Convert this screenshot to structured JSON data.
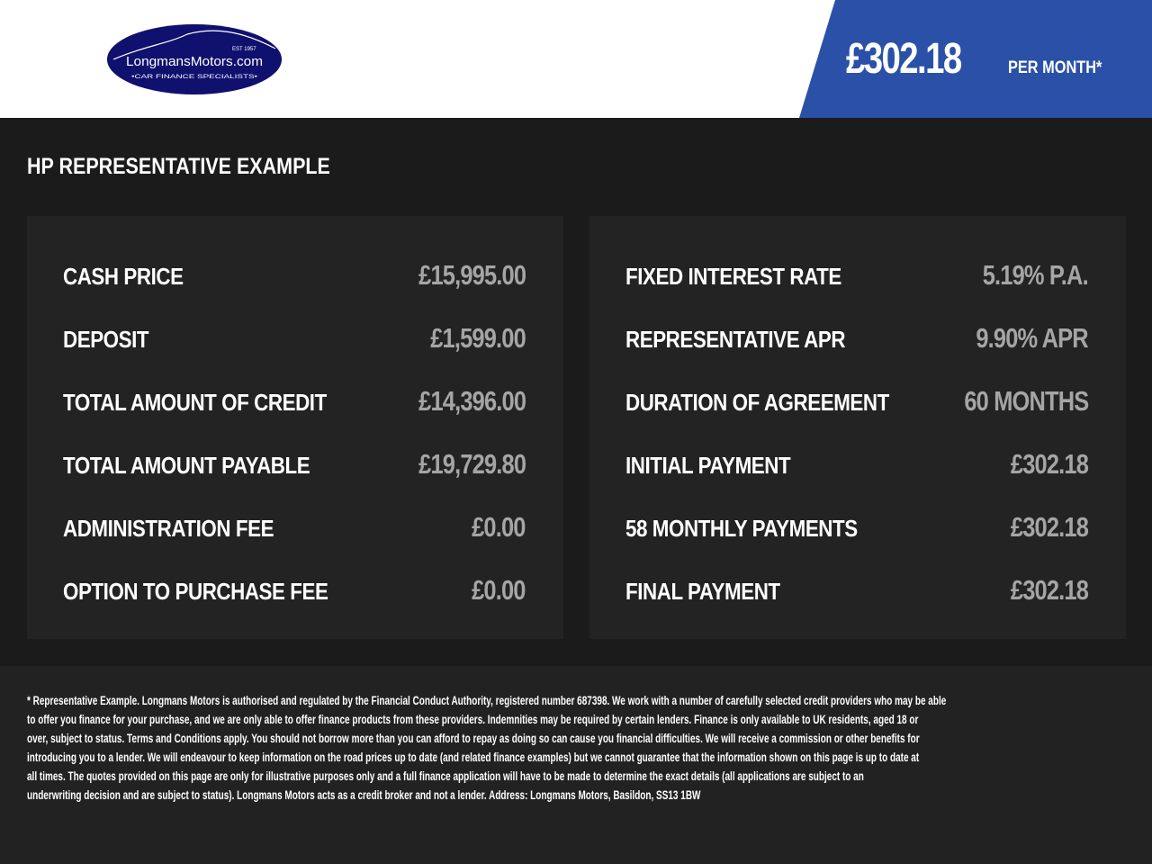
{
  "header": {
    "logo": {
      "name": "LongmansMotors.com",
      "est": "EST 1957",
      "tagline": "•CAR FINANCE SPECIALISTS•"
    },
    "price": "£302.18",
    "price_suffix": "PER MONTH*",
    "accent_color": "#2a50a8"
  },
  "section_title": "HP REPRESENTATIVE EXAMPLE",
  "left_panel": [
    {
      "label": "CASH PRICE",
      "value": "£15,995.00"
    },
    {
      "label": "DEPOSIT",
      "value": "£1,599.00"
    },
    {
      "label": "TOTAL AMOUNT OF CREDIT",
      "value": "£14,396.00"
    },
    {
      "label": "TOTAL AMOUNT PAYABLE",
      "value": "£19,729.80"
    },
    {
      "label": "ADMINISTRATION FEE",
      "value": "£0.00"
    },
    {
      "label": "OPTION TO PURCHASE FEE",
      "value": "£0.00"
    }
  ],
  "right_panel": [
    {
      "label": "FIXED INTEREST RATE",
      "value": "5.19% P.A."
    },
    {
      "label": "REPRESENTATIVE APR",
      "value": "9.90% APR"
    },
    {
      "label": "DURATION OF AGREEMENT",
      "value": "60 MONTHS"
    },
    {
      "label": "INITIAL PAYMENT",
      "value": "£302.18"
    },
    {
      "label": "58 MONTHLY PAYMENTS",
      "value": "£302.18"
    },
    {
      "label": "FINAL PAYMENT",
      "value": "£302.18"
    }
  ],
  "disclaimer_lines": [
    "* Representative Example. Longmans Motors is authorised and regulated by the Financial Conduct Authority, registered number 687398. We work with a number of carefully selected credit providers who may be able",
    "to offer you finance for your purchase, and we are only able to offer finance products from these providers. Indemnities may be required by certain lenders. Finance is only available to UK residents, aged 18 or",
    "over, subject to status. Terms and Conditions apply. You should not borrow more than you can afford to repay as doing so can cause you financial difficulties. We will receive a commission or other benefits for",
    "introducing you to a lender. We will endeavour to keep information on the road prices up to date (and related finance examples) but we cannot guarantee that the information shown on this page is up to date at",
    "all times. The quotes provided on this page are only for illustrative purposes only and a full finance application will have to be made to determine the exact details (all applications are subject to an",
    "underwriting decision and are subject to status). Longmans Motors acts as a credit broker and not a lender. Address: Longmans Motors, Basildon, SS13 1BW"
  ]
}
